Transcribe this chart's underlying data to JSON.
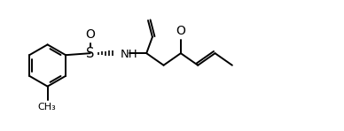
{
  "bg_color": "#ffffff",
  "line_color": "#000000",
  "line_width": 1.4,
  "font_size": 8.5,
  "figsize": [
    3.88,
    1.48
  ],
  "dpi": 100,
  "xlim": [
    0,
    9.5
  ],
  "ylim": [
    0,
    3.5
  ]
}
